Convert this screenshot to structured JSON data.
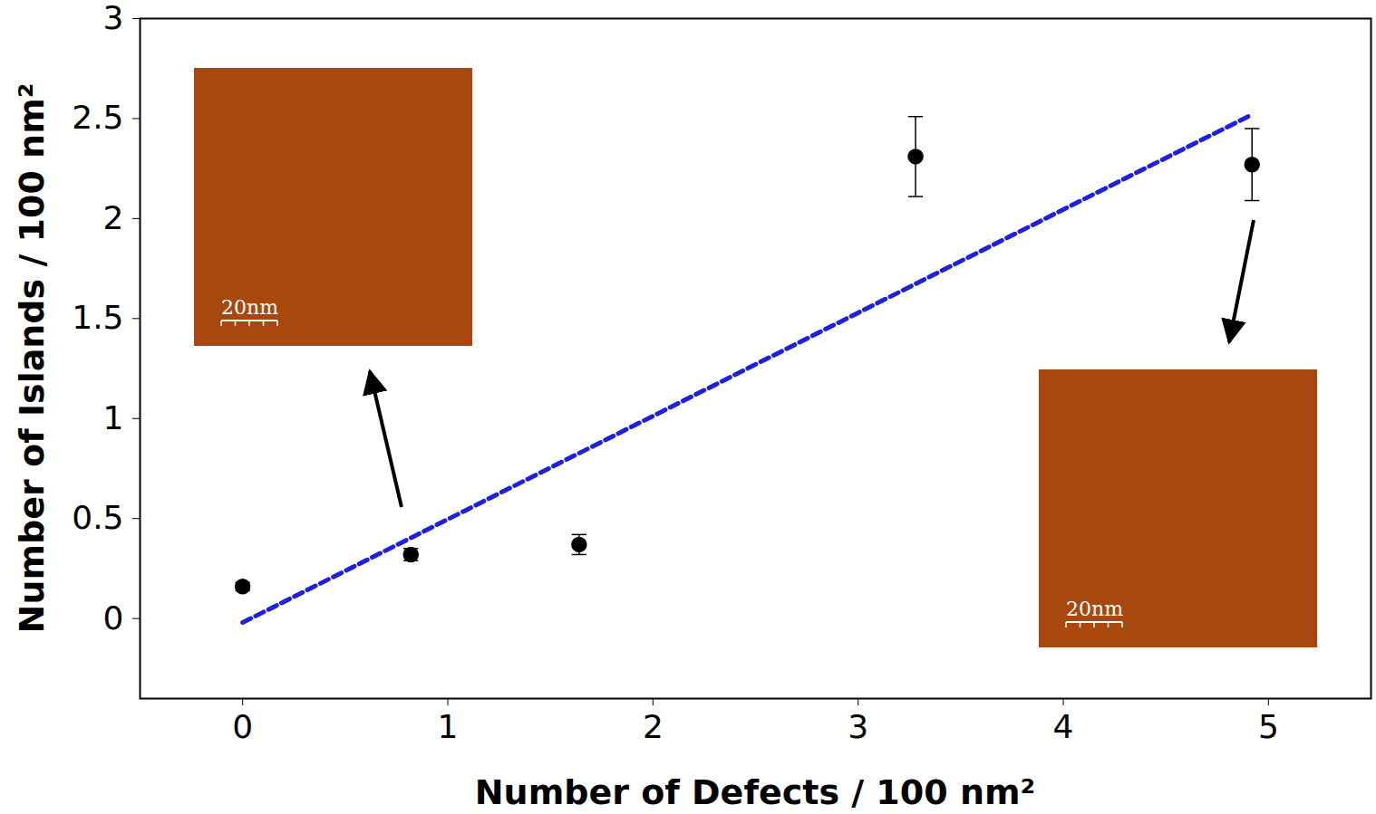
{
  "chart_data": {
    "type": "scatter",
    "x_label": "Number of Defects / 100 nm²",
    "y_label": "Number of Islands / 100 nm²",
    "x": [
      0,
      0.82,
      1.64,
      3.28,
      4.92
    ],
    "values": [
      0.16,
      0.32,
      0.37,
      2.31,
      2.27
    ],
    "errors": [
      0.02,
      0.03,
      0.05,
      0.2,
      0.18
    ],
    "color": "#000000",
    "marker": "circle",
    "fit_line": {
      "x": [
        0,
        4.92
      ],
      "y": [
        -0.02,
        2.52
      ],
      "color": "#1f1fe0",
      "line_style": "dashed"
    },
    "xlim": [
      -0.5,
      5.5
    ],
    "xticks": [
      0,
      1,
      2,
      3,
      4,
      5
    ],
    "ylim": [
      -0.4,
      3
    ],
    "yticks": [
      0,
      0.5,
      1,
      1.5,
      2,
      2.5,
      3
    ],
    "grid": false,
    "insets": [
      {
        "scale_bar": "20nm"
      },
      {
        "scale_bar": "20nm"
      }
    ]
  }
}
